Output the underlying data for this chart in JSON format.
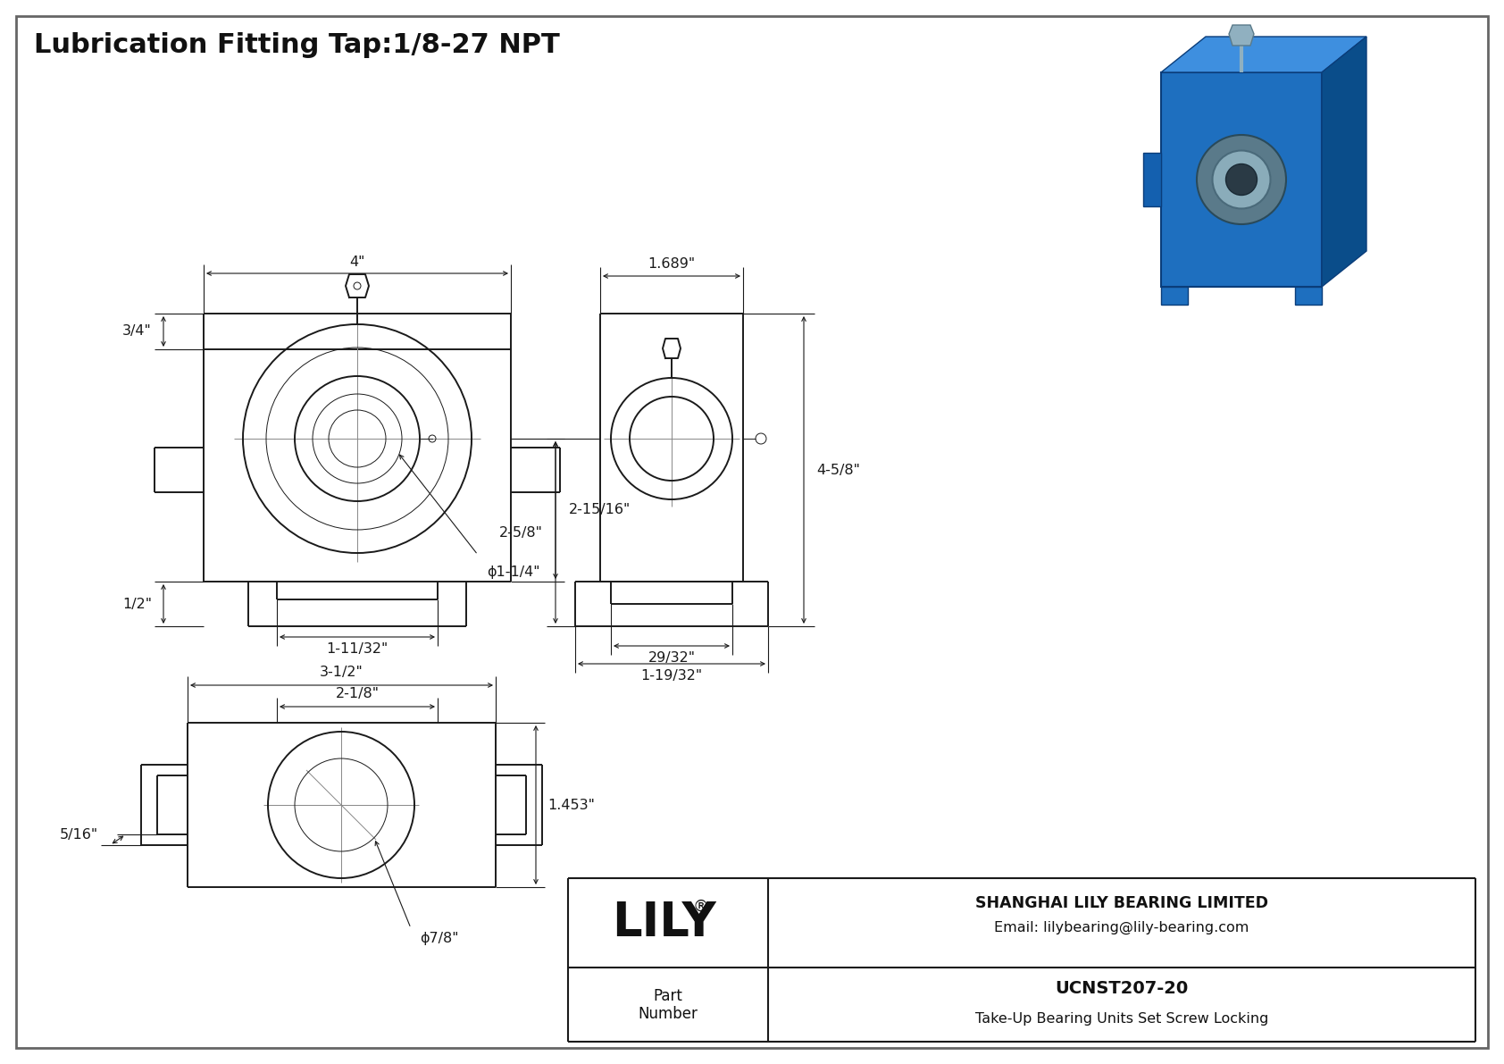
{
  "title": "Lubrication Fitting Tap:1/8-27 NPT",
  "bg_color": "#ffffff",
  "line_color": "#1a1a1a",
  "dim_color": "#1a1a1a",
  "title_fontsize": 22,
  "dim_fontsize": 11.5,
  "company": "SHANGHAI LILY BEARING LIMITED",
  "email": "Email: lilybearing@lily-bearing.com",
  "part_label": "Part\nNumber",
  "part_number": "UCNST207-20",
  "part_desc": "Take-Up Bearing Units Set Screw Locking",
  "logo": "LILY",
  "logo_reg": "®",
  "phi": "ϕ"
}
